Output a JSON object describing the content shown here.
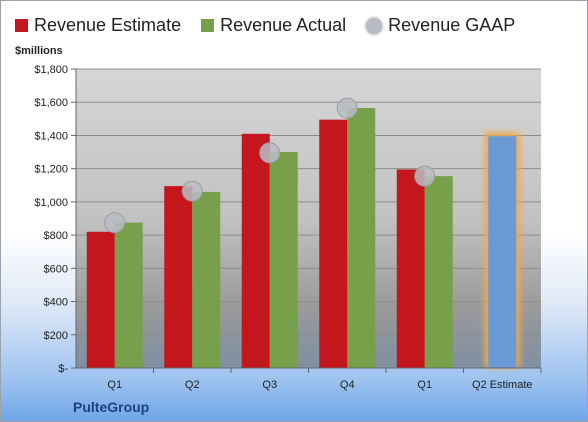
{
  "chart_data": {
    "type": "bar",
    "categories": [
      "Q1",
      "Q2",
      "Q3",
      "Q4",
      "Q1",
      "Q2 Estimate"
    ],
    "series": [
      {
        "name": "Revenue Estimate",
        "color": "#c3171d",
        "values": [
          820,
          1095,
          1410,
          1495,
          1195,
          null
        ]
      },
      {
        "name": "Revenue Actual",
        "color": "#77a04a",
        "values": [
          875,
          1060,
          1300,
          1565,
          1155,
          null
        ]
      },
      {
        "name": "Revenue GAAP",
        "color": "#b9bcc4",
        "type": "scatter",
        "values": [
          875,
          1065,
          1295,
          1565,
          1155,
          null
        ]
      }
    ],
    "estimate_bar": {
      "category": "Q2 Estimate",
      "value": 1395,
      "color": "#6b9bd6",
      "highlight": "#f3a94a"
    },
    "ylabel": "$millions",
    "ylim": [
      0,
      1800
    ],
    "yticks": [
      0,
      200,
      400,
      600,
      800,
      1000,
      1200,
      1400,
      1600,
      1800
    ],
    "ytick_labels": [
      "$-",
      "$200",
      "$400",
      "$600",
      "$800",
      "$1,000",
      "$1,200",
      "$1,400",
      "$1,600",
      "$1,800"
    ],
    "grid": true,
    "legend_position": "top"
  },
  "company": "PulteGroup"
}
